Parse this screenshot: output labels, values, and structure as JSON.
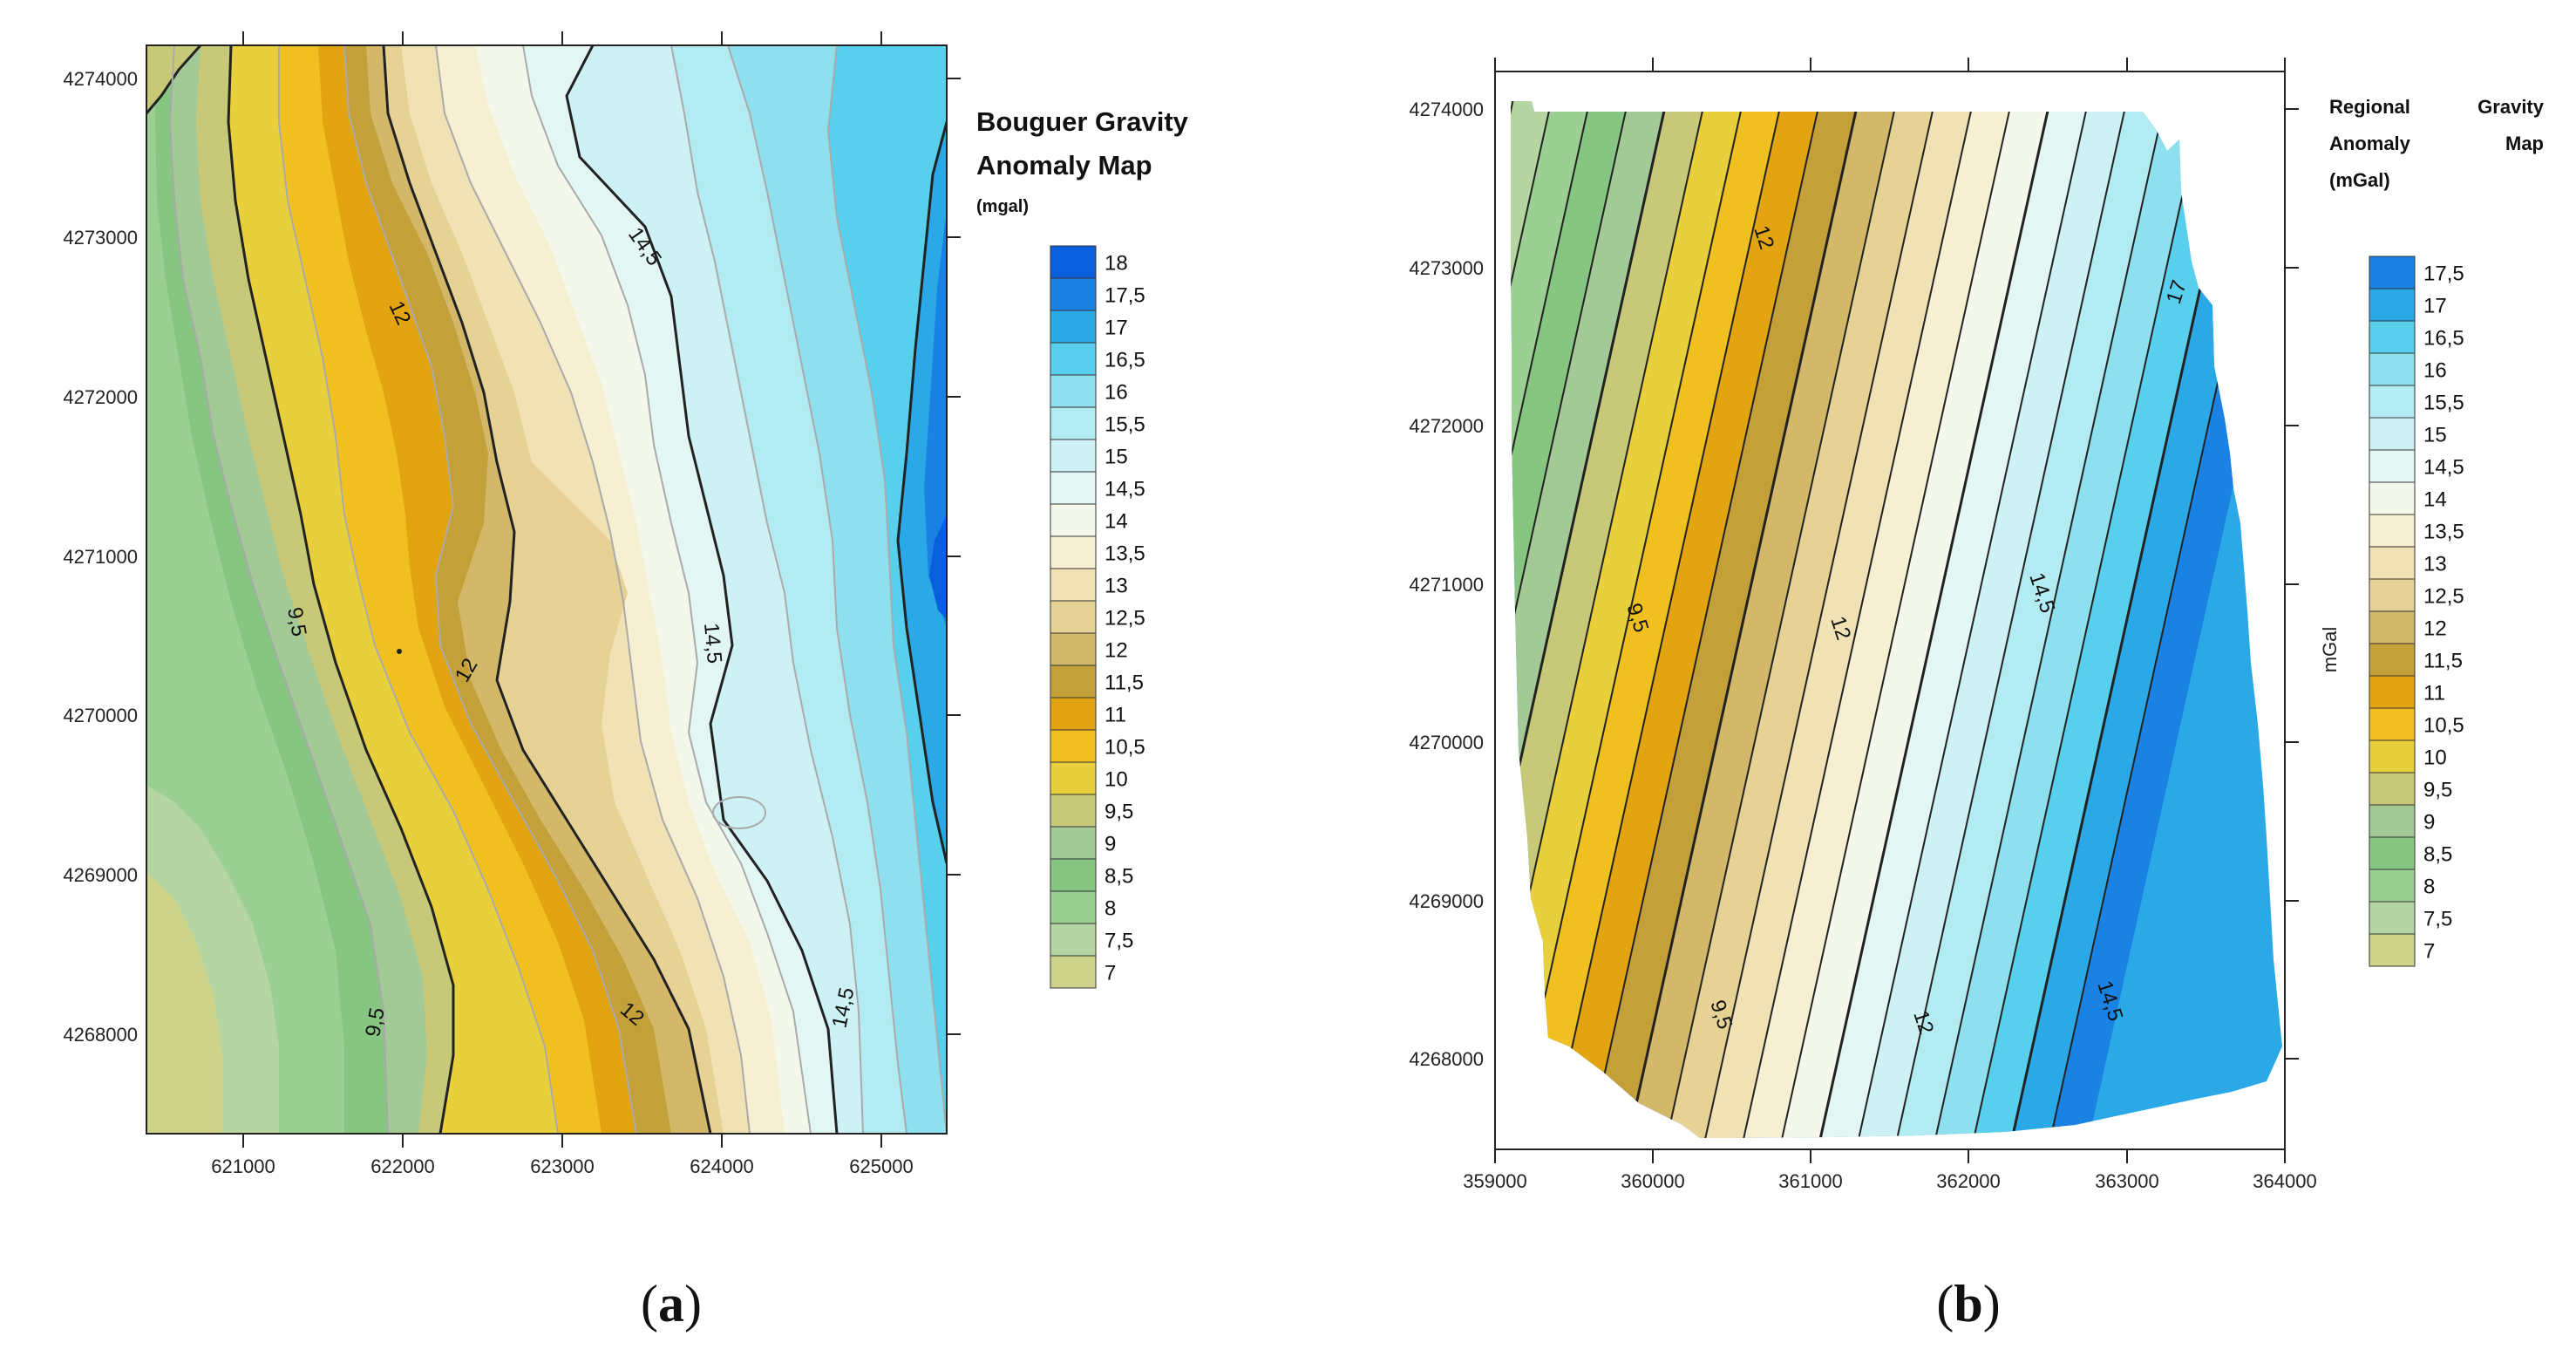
{
  "panel_a": {
    "title_line1": "Bouguer Gravity",
    "title_line2": "Anomaly Map",
    "unit": "(mgal)",
    "x_ticks": [
      "621000",
      "622000",
      "623000",
      "624000",
      "625000"
    ],
    "y_ticks": [
      "4274000",
      "4273000",
      "4272000",
      "4271000",
      "4270000",
      "4269000",
      "4268000"
    ],
    "contour_labels": [
      "14,5",
      "12",
      "9,5",
      "12",
      "14,5",
      "9,5",
      "12",
      "14,5"
    ],
    "legend": [
      "18",
      "17,5",
      "17",
      "16,5",
      "16",
      "15,5",
      "15",
      "14,5",
      "14",
      "13,5",
      "13",
      "12,5",
      "12",
      "11,5",
      "11",
      "10,5",
      "10",
      "9,5",
      "9",
      "8,5",
      "8",
      "7,5",
      "7"
    ],
    "caption_prefix": "(",
    "caption_letter": "a",
    "caption_suffix": ")"
  },
  "panel_b": {
    "title_line1_left": "Regional",
    "title_line1_right": "Gravity",
    "title_line2_left": "Anomaly",
    "title_line2_right": "Map",
    "title_line3": "(mGal)",
    "side_label": "mGal",
    "x_ticks": [
      "359000",
      "360000",
      "361000",
      "362000",
      "363000",
      "364000"
    ],
    "y_ticks": [
      "4274000",
      "4273000",
      "4272000",
      "4271000",
      "4270000",
      "4269000",
      "4268000"
    ],
    "contour_labels": [
      "12",
      "17",
      "14,5",
      "12",
      "9,5",
      "9,5",
      "12",
      "14,5"
    ],
    "legend": [
      "17,5",
      "17",
      "16,5",
      "16",
      "15,5",
      "15",
      "14,5",
      "14",
      "13,5",
      "13",
      "12,5",
      "12",
      "11,5",
      "11",
      "10,5",
      "10",
      "9,5",
      "9",
      "8,5",
      "8",
      "7,5",
      "7"
    ],
    "caption_prefix": "(",
    "caption_letter": "b",
    "caption_suffix": ")"
  },
  "colors": {
    "c7": "#cdd48a",
    "c7_5": "#b5d6a2",
    "c8": "#9bcf93",
    "c8_5": "#86c681",
    "c9": "#a3c996",
    "c9_5": "#c8c978",
    "c10": "#e8cf3c",
    "c10_5": "#f0c020",
    "c11": "#e3a412",
    "c11_5": "#c4a03a",
    "c12": "#d2b868",
    "c12_5": "#e6d294",
    "c13": "#f1e2b6",
    "c13_5": "#f6efd2",
    "c14": "#f4f8ea",
    "c14_5": "#e2f6f4",
    "c15": "#cdf1f4",
    "c15_5": "#b3ebf2",
    "c16": "#8ee0ee",
    "c16_5": "#58cfec",
    "c17": "#2ba8e6",
    "c17_5": "#1a82e2",
    "c18": "#0a5fdc"
  }
}
